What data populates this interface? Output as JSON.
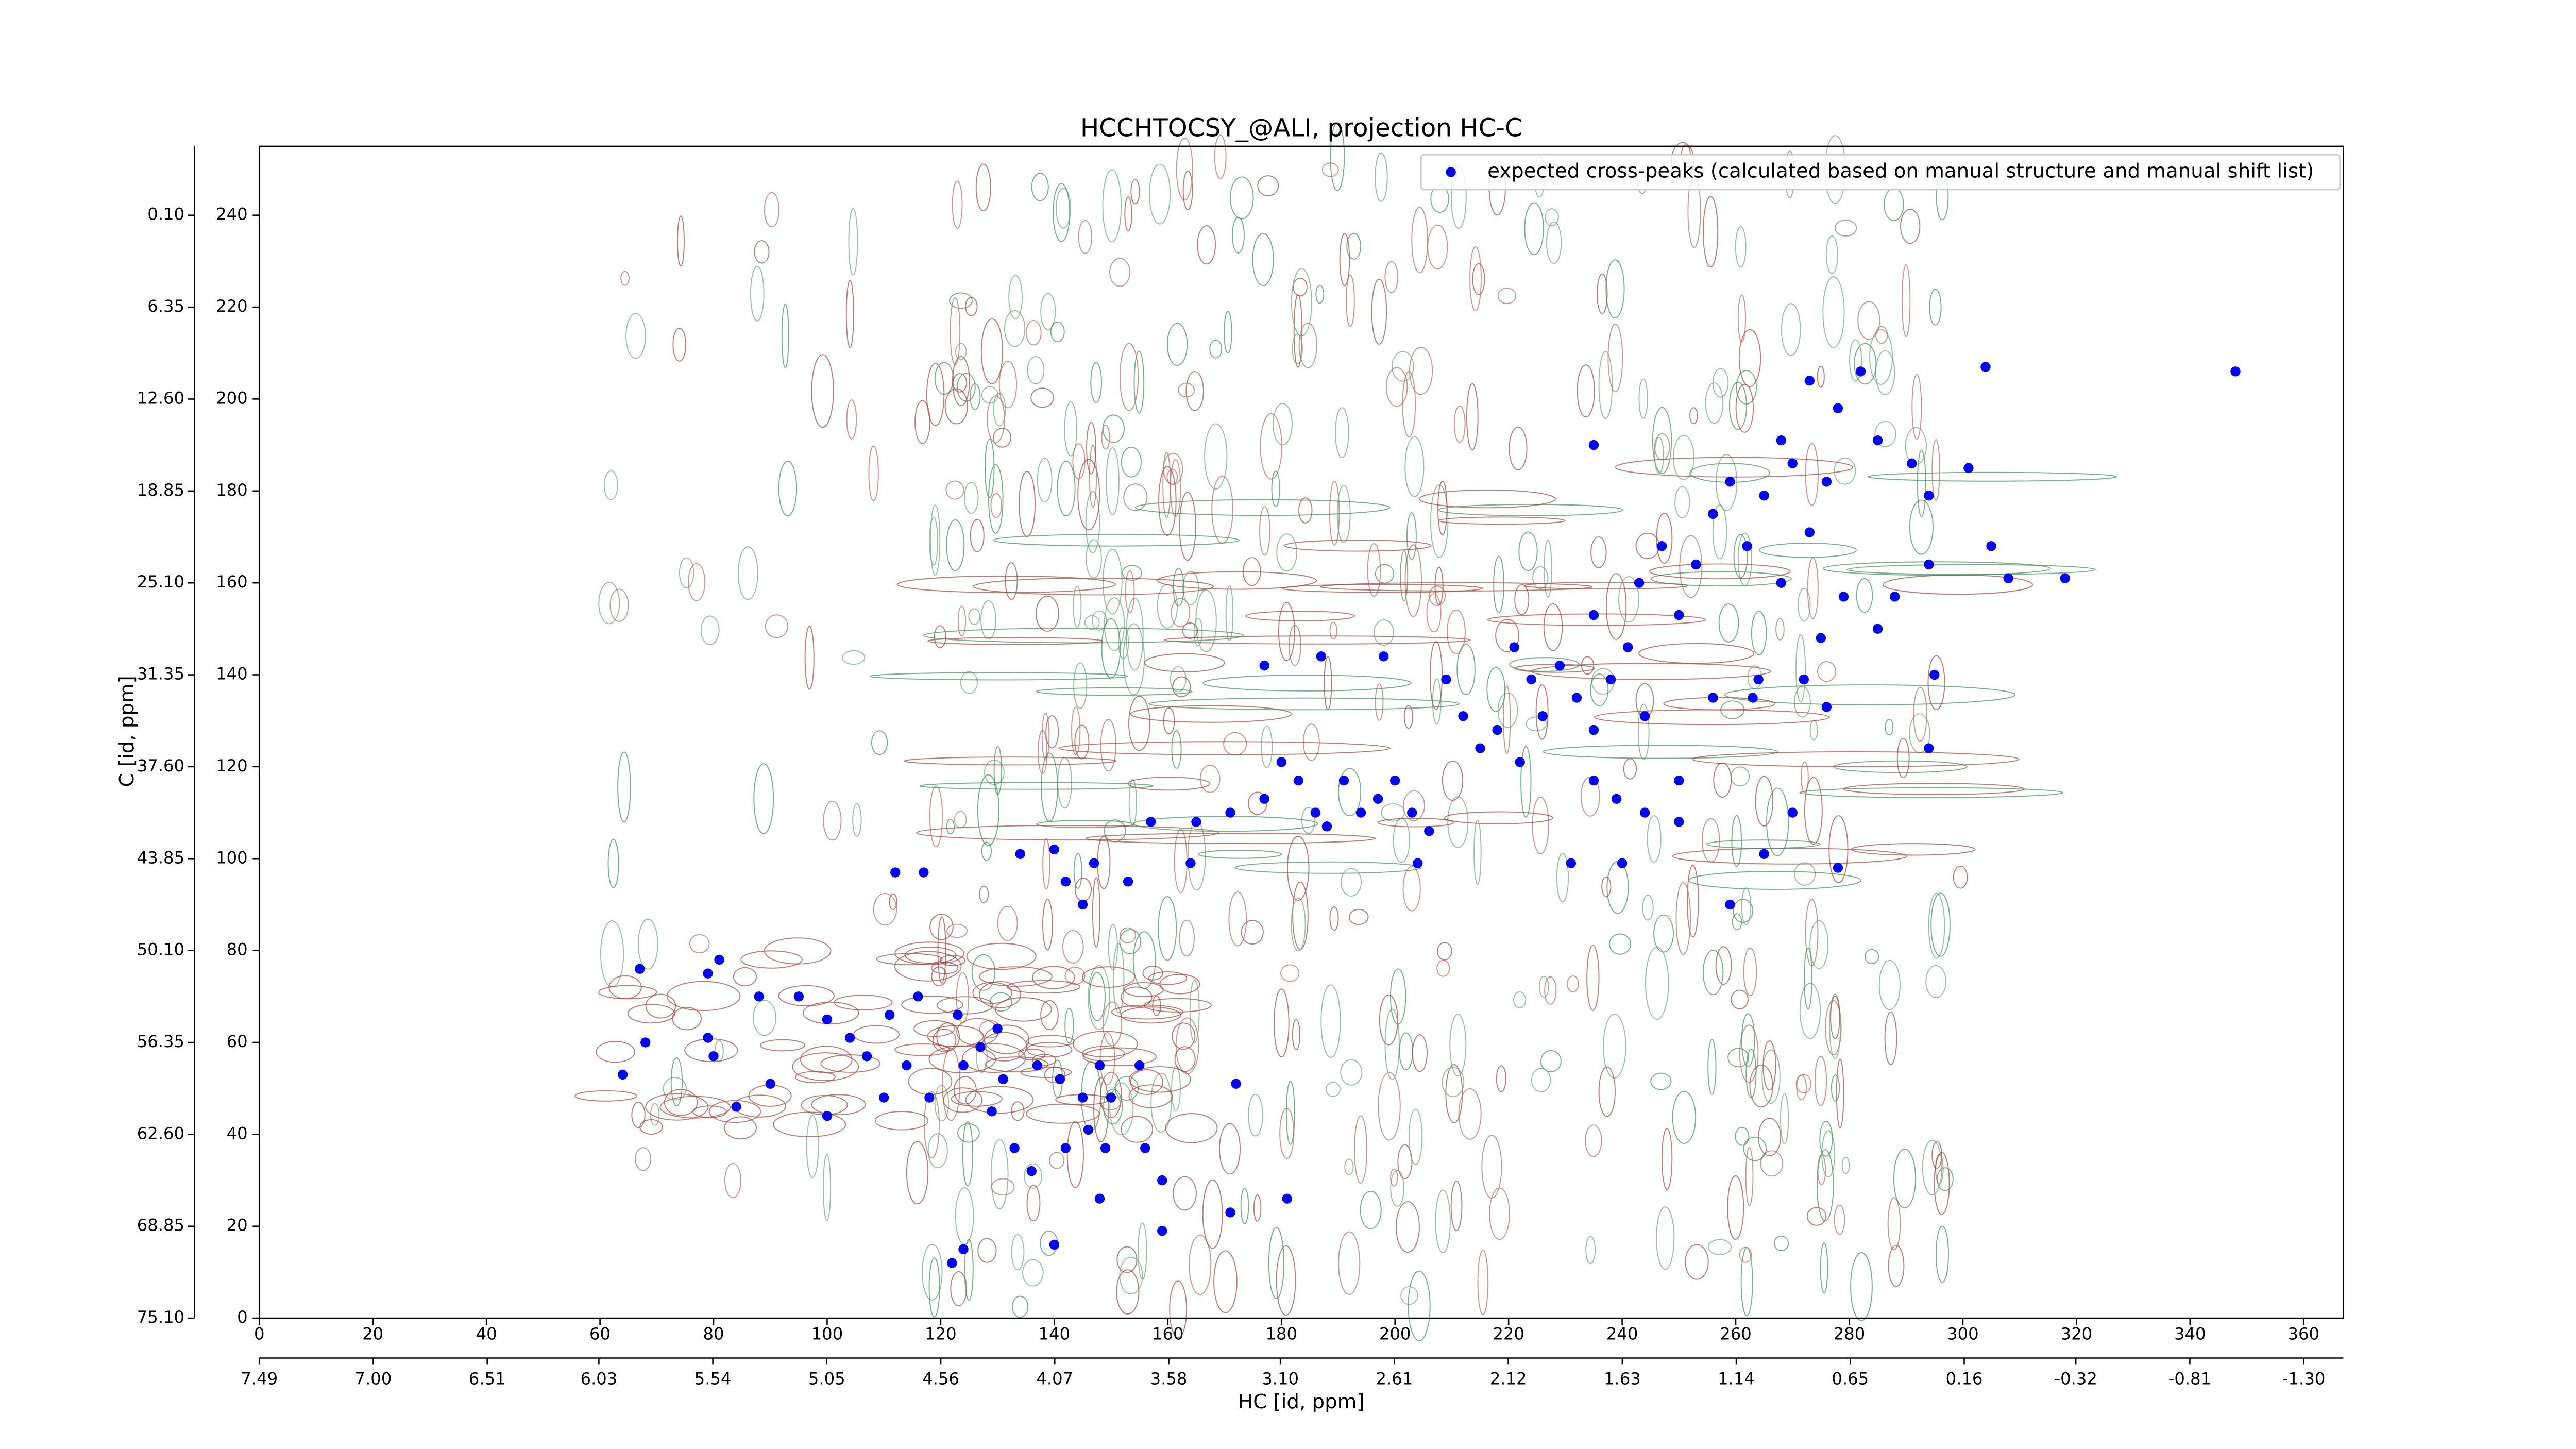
{
  "chart_data": {
    "type": "scatter",
    "title": "HCCHTOCSY_@ALI, projection HC-C",
    "xlabel": "HC [id, ppm]",
    "ylabel": "C [id, ppm]",
    "xlim": [
      0,
      367
    ],
    "ylim": [
      0,
      255
    ],
    "xticks": [
      0,
      20,
      40,
      60,
      80,
      100,
      120,
      140,
      160,
      180,
      200,
      220,
      240,
      260,
      280,
      300,
      320,
      340,
      360
    ],
    "yticks": [
      0,
      20,
      40,
      60,
      80,
      100,
      120,
      140,
      160,
      180,
      200,
      220,
      240
    ],
    "x2lim": [
      7.49,
      -1.47
    ],
    "x2ticks": [
      7.49,
      {
        "value": 7,
        "label": "7.00"
      },
      6.51,
      6.03,
      5.54,
      5.05,
      4.56,
      4.07,
      3.58,
      {
        "value": 3.1,
        "label": "3.10"
      },
      2.61,
      2.12,
      1.63,
      1.14,
      0.65,
      0.16,
      -0.32,
      -0.81,
      {
        "value": -1.3,
        "label": "-1.30"
      }
    ],
    "y2lim": [
      75.1,
      -4.59
    ],
    "y2ticks": [
      {
        "value": 75.1,
        "label": "75.10"
      },
      68.85,
      {
        "value": 62.6,
        "label": "62.60"
      },
      56.35,
      {
        "value": 50.1,
        "label": "50.10"
      },
      43.85,
      {
        "value": 37.6,
        "label": "37.60"
      },
      31.35,
      {
        "value": 25.1,
        "label": "25.10"
      },
      18.85,
      {
        "value": 12.6,
        "label": "12.60"
      },
      6.35,
      {
        "value": 0.1,
        "label": "0.10"
      }
    ],
    "legend": "upper right",
    "series": [
      {
        "name": "expected cross-peaks (calculated based on manual structure and manual shift list)",
        "color": "#0000ff",
        "x": [
          67,
          79,
          81,
          88,
          95,
          100,
          68,
          64,
          79,
          80,
          84,
          90,
          100,
          104,
          107,
          111,
          114,
          116,
          123,
          124,
          127,
          130,
          131,
          129,
          118,
          110,
          137,
          141,
          145,
          148,
          150,
          155,
          146,
          149,
          142,
          136,
          133,
          156,
          159,
          148,
          140,
          122,
          124,
          159,
          171,
          181,
          172,
          112,
          117,
          140,
          142,
          147,
          153,
          145,
          134,
          157,
          164,
          165,
          171,
          177,
          183,
          186,
          188,
          191,
          194,
          197,
          200,
          203,
          206,
          204,
          180,
          177,
          187,
          198,
          209,
          212,
          215,
          218,
          221,
          224,
          226,
          229,
          232,
          235,
          238,
          241,
          244,
          239,
          244,
          250,
          235,
          231,
          240,
          222,
          256,
          263,
          235,
          243,
          247,
          250,
          253,
          256,
          259,
          262,
          265,
          268,
          270,
          273,
          276,
          279,
          268,
          273,
          278,
          282,
          285,
          291,
          294,
          301,
          305,
          308,
          318,
          294,
          288,
          285,
          275,
          272,
          276,
          294,
          295,
          304,
          348,
          235,
          264,
          270,
          278,
          265,
          259,
          250
        ],
        "values": [
          76,
          75,
          78,
          70,
          70,
          65,
          60,
          53,
          61,
          57,
          46,
          51,
          44,
          61,
          57,
          66,
          55,
          70,
          66,
          55,
          59,
          63,
          52,
          45,
          48,
          48,
          55,
          52,
          48,
          55,
          48,
          55,
          41,
          37,
          37,
          32,
          37,
          37,
          30,
          26,
          16,
          12,
          15,
          19,
          23,
          26,
          51,
          97,
          97,
          102,
          95,
          99,
          95,
          90,
          101,
          108,
          99,
          108,
          110,
          113,
          117,
          110,
          107,
          117,
          110,
          113,
          117,
          110,
          106,
          99,
          121,
          142,
          144,
          144,
          139,
          131,
          124,
          128,
          146,
          139,
          131,
          142,
          135,
          128,
          139,
          146,
          131,
          113,
          110,
          108,
          117,
          99,
          99,
          121,
          135,
          135,
          153,
          160,
          168,
          153,
          164,
          175,
          182,
          168,
          179,
          160,
          186,
          171,
          182,
          157,
          191,
          204,
          198,
          206,
          191,
          186,
          179,
          185,
          168,
          161,
          161,
          164,
          157,
          150,
          148,
          139,
          133,
          124,
          140,
          207,
          206,
          190,
          139,
          110,
          98,
          101,
          90,
          117
        ]
      }
    ]
  }
}
